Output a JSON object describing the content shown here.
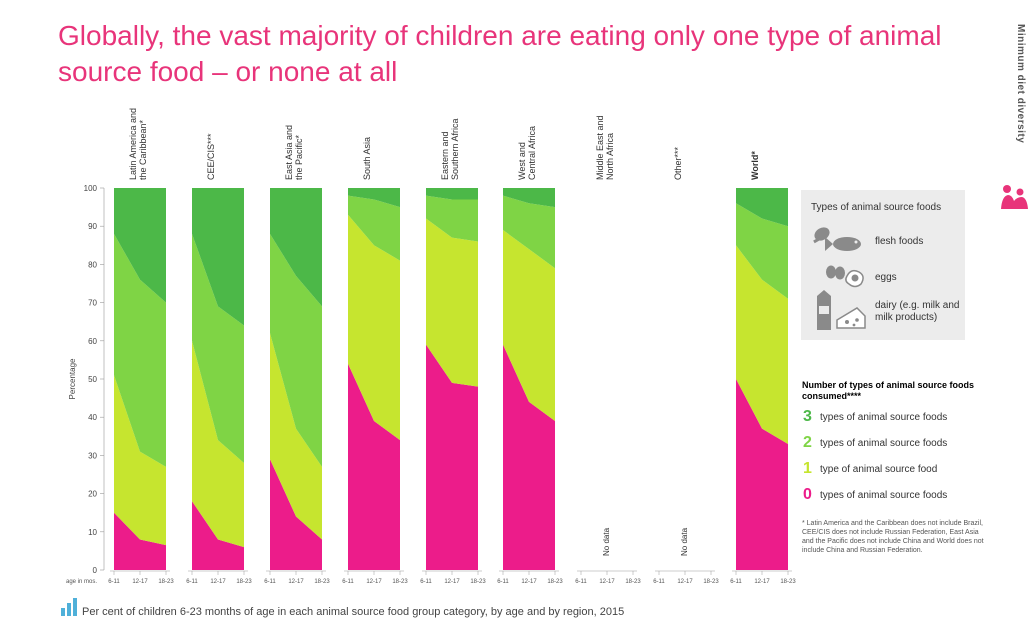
{
  "title": "Globally, the vast majority of children are eating only one type of animal source food – or none at all",
  "sidebar_label": "Minimum diet diversity",
  "colors": {
    "three": "#4cb848",
    "two": "#7fd445",
    "one": "#c6e52f",
    "zero": "#ec1c8a",
    "title": "#e8347a"
  },
  "chart_data": {
    "type": "area",
    "ylabel": "Percentage",
    "age_axis_label": "age in mos.",
    "ylim": [
      0,
      100
    ],
    "yticks": [
      0,
      10,
      20,
      30,
      40,
      50,
      60,
      70,
      80,
      90,
      100
    ],
    "age_groups": [
      "6-11",
      "12-17",
      "18-23"
    ],
    "no_data_label": "No data",
    "series_names": [
      "0 types",
      "1 type",
      "2 types",
      "3 types"
    ],
    "regions": [
      {
        "name": "Latin America and the Caribbean*",
        "data": true,
        "cumulative": {
          "0": [
            15,
            8,
            6.5
          ],
          "1": [
            51,
            31,
            27
          ],
          "2": [
            88,
            76,
            70
          ]
        }
      },
      {
        "name": "CEE/CIS***",
        "data": true,
        "cumulative": {
          "0": [
            18,
            8,
            6
          ],
          "1": [
            60,
            34,
            28
          ],
          "2": [
            88,
            69,
            64
          ]
        }
      },
      {
        "name": "East Asia and the Pacific*",
        "data": true,
        "cumulative": {
          "0": [
            29,
            14,
            8
          ],
          "1": [
            62,
            37,
            27
          ],
          "2": [
            88,
            77,
            69
          ]
        }
      },
      {
        "name": "South Asia",
        "data": true,
        "cumulative": {
          "0": [
            54,
            39,
            34
          ],
          "1": [
            93,
            85,
            81
          ],
          "2": [
            98,
            97,
            95
          ]
        }
      },
      {
        "name": "Eastern and Southern Africa",
        "data": true,
        "cumulative": {
          "0": [
            59,
            49,
            48
          ],
          "1": [
            92,
            87,
            86
          ],
          "2": [
            98,
            97,
            97
          ]
        }
      },
      {
        "name": "West and Central Africa",
        "data": true,
        "cumulative": {
          "0": [
            59,
            44,
            39
          ],
          "1": [
            89,
            84,
            79
          ],
          "2": [
            98,
            96,
            95
          ]
        }
      },
      {
        "name": "Middle East and North Africa",
        "data": false
      },
      {
        "name": "Other***",
        "data": false
      },
      {
        "name": "World*",
        "data": true,
        "cumulative": {
          "0": [
            50,
            37,
            33
          ],
          "1": [
            85,
            76,
            71
          ],
          "2": [
            96,
            92,
            90
          ]
        }
      }
    ]
  },
  "legend": {
    "title": "Types of animal source foods",
    "items": [
      {
        "label": "flesh foods"
      },
      {
        "label": "eggs"
      },
      {
        "label": "dairy (e.g. milk and milk products)"
      }
    ]
  },
  "counts": {
    "title": "Number of types of animal source foods consumed****",
    "items": [
      {
        "num": "3",
        "label": "types of animal source foods"
      },
      {
        "num": "2",
        "label": "types of animal source foods"
      },
      {
        "num": "1",
        "label": "type of animal source food"
      },
      {
        "num": "0",
        "label": "types of animal source foods"
      }
    ]
  },
  "footnote": "* Latin America and the Caribbean does not include Brazil, CEE/CIS does not include Russian Federation, East Asia and the Pacific does not include China and World does not include China and Russian Federation.",
  "caption": "Per cent of children 6-23 months of age in each animal source food group category, by age and by region, 2015"
}
